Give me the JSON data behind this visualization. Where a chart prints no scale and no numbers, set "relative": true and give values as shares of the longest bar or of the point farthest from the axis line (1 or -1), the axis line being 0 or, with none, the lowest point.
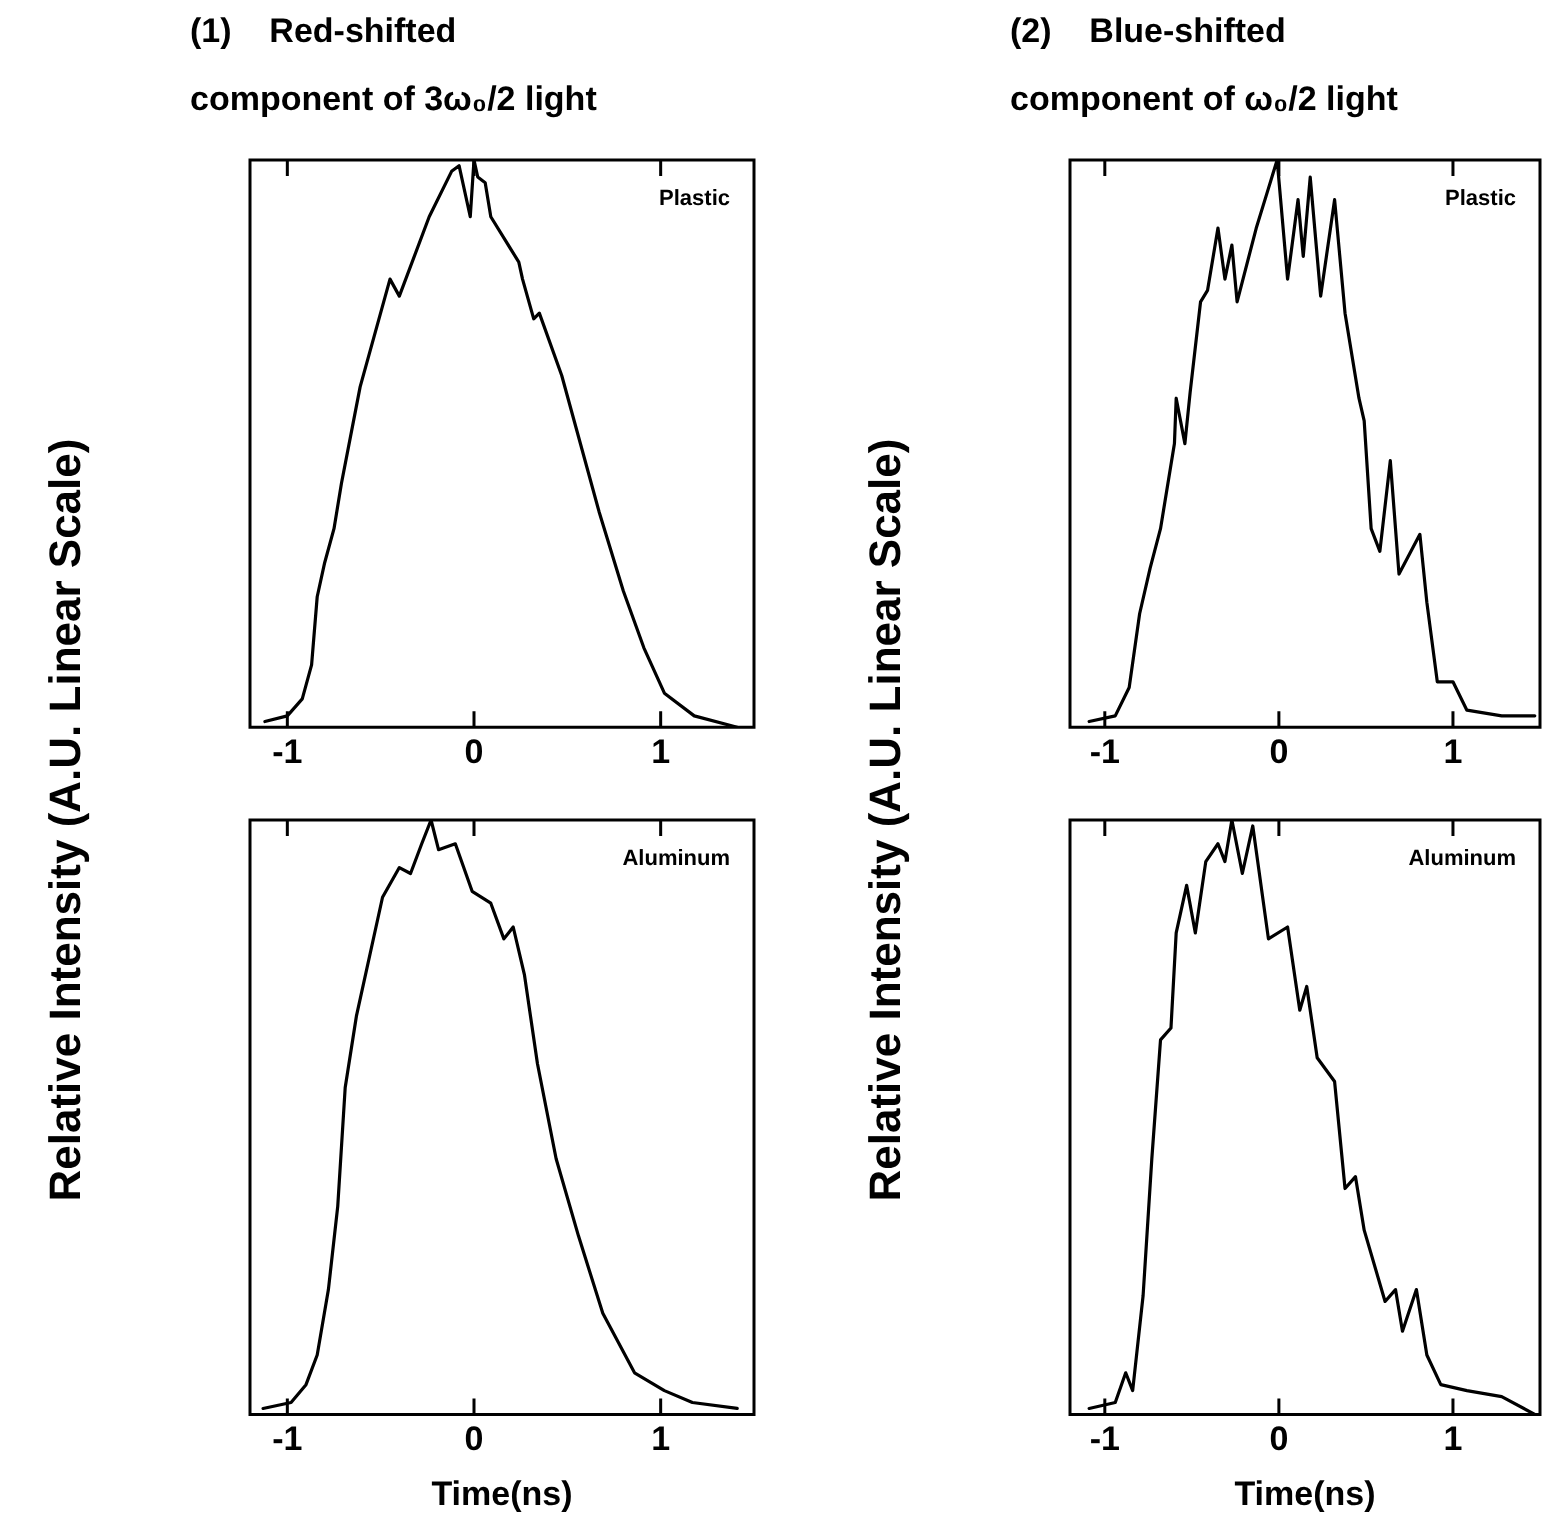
{
  "chart_data": [
    {
      "type": "line",
      "title": "(1)    Red-shifted",
      "subtitle": "component of 3ω₀/2 light",
      "ylabel": "Relative Intensity (A.U. Linear Scale)",
      "relative": true,
      "annotations": [
        "Plastic"
      ],
      "xlim": [
        -1.2,
        1.5
      ],
      "xticks": [
        -1,
        0,
        1
      ],
      "legend": false,
      "marker": "none",
      "line_style": "solid",
      "series": [
        {
          "color": "#000000",
          "x": [
            -1.12,
            -1.0,
            -0.92,
            -0.87,
            -0.84,
            -0.8,
            -0.75,
            -0.71,
            -0.61,
            -0.45,
            -0.4,
            -0.24,
            -0.12,
            -0.08,
            -0.02,
            0.0,
            0.02,
            0.06,
            0.09,
            0.24,
            0.26,
            0.32,
            0.35,
            0.47,
            0.67,
            0.8,
            0.91,
            1.02,
            1.18,
            1.41
          ],
          "values": [
            0.01,
            0.02,
            0.05,
            0.11,
            0.23,
            0.29,
            0.35,
            0.43,
            0.6,
            0.79,
            0.76,
            0.9,
            0.98,
            0.99,
            0.9,
            1.0,
            0.97,
            0.96,
            0.9,
            0.82,
            0.79,
            0.72,
            0.73,
            0.62,
            0.38,
            0.24,
            0.14,
            0.06,
            0.02,
            0.0
          ]
        }
      ]
    },
    {
      "type": "line",
      "title": "(2)    Blue-shifted",
      "subtitle": "component of ω₀/2 light",
      "ylabel": "Relative Intensity (A.U. Linear Scale)",
      "relative": true,
      "annotations": [
        "Plastic"
      ],
      "xlim": [
        -1.2,
        1.5
      ],
      "xticks": [
        -1,
        0,
        1
      ],
      "legend": false,
      "marker": "none",
      "line_style": "solid",
      "series": [
        {
          "color": "#000000",
          "x": [
            -1.09,
            -0.94,
            -0.86,
            -0.8,
            -0.74,
            -0.68,
            -0.6,
            -0.59,
            -0.54,
            -0.51,
            -0.45,
            -0.41,
            -0.35,
            -0.31,
            -0.27,
            -0.24,
            -0.13,
            -0.06,
            -0.01,
            0.05,
            0.11,
            0.14,
            0.18,
            0.24,
            0.32,
            0.38,
            0.46,
            0.49,
            0.53,
            0.58,
            0.64,
            0.69,
            0.81,
            0.85,
            0.91,
            1.0,
            1.08,
            1.28,
            1.47
          ],
          "values": [
            0.01,
            0.02,
            0.07,
            0.2,
            0.28,
            0.35,
            0.5,
            0.58,
            0.5,
            0.59,
            0.75,
            0.77,
            0.88,
            0.79,
            0.85,
            0.75,
            0.88,
            0.95,
            1.0,
            0.79,
            0.93,
            0.83,
            0.97,
            0.76,
            0.93,
            0.73,
            0.58,
            0.54,
            0.35,
            0.31,
            0.47,
            0.27,
            0.34,
            0.22,
            0.08,
            0.08,
            0.03,
            0.02,
            0.02
          ]
        }
      ]
    },
    {
      "type": "line",
      "xlabel": "Time(ns)",
      "relative": true,
      "annotations": [
        "Aluminum"
      ],
      "xlim": [
        -1.2,
        1.5
      ],
      "xticks": [
        -1,
        0,
        1
      ],
      "legend": false,
      "marker": "none",
      "line_style": "solid",
      "series": [
        {
          "color": "#000000",
          "x": [
            -1.13,
            -0.98,
            -0.9,
            -0.84,
            -0.78,
            -0.73,
            -0.69,
            -0.63,
            -0.49,
            -0.4,
            -0.34,
            -0.28,
            -0.23,
            -0.19,
            -0.1,
            -0.01,
            0.09,
            0.16,
            0.21,
            0.27,
            0.34,
            0.44,
            0.56,
            0.69,
            0.86,
            1.02,
            1.17,
            1.41
          ],
          "values": [
            0.01,
            0.02,
            0.05,
            0.1,
            0.21,
            0.35,
            0.55,
            0.67,
            0.87,
            0.92,
            0.91,
            0.96,
            1.0,
            0.95,
            0.96,
            0.88,
            0.86,
            0.8,
            0.82,
            0.74,
            0.59,
            0.43,
            0.3,
            0.17,
            0.07,
            0.04,
            0.02,
            0.01
          ]
        }
      ]
    },
    {
      "type": "line",
      "xlabel": "Time(ns)",
      "relative": true,
      "annotations": [
        "Aluminum"
      ],
      "xlim": [
        -1.2,
        1.5
      ],
      "xticks": [
        -1,
        0,
        1
      ],
      "legend": false,
      "marker": "none",
      "line_style": "solid",
      "series": [
        {
          "color": "#000000",
          "x": [
            -1.09,
            -0.94,
            -0.88,
            -0.84,
            -0.78,
            -0.73,
            -0.68,
            -0.62,
            -0.59,
            -0.53,
            -0.48,
            -0.42,
            -0.35,
            -0.31,
            -0.27,
            -0.21,
            -0.15,
            -0.06,
            0.05,
            0.12,
            0.16,
            0.22,
            0.32,
            0.38,
            0.44,
            0.49,
            0.61,
            0.67,
            0.71,
            0.79,
            0.85,
            0.93,
            1.08,
            1.28,
            1.47
          ],
          "values": [
            0.01,
            0.02,
            0.07,
            0.04,
            0.2,
            0.43,
            0.63,
            0.65,
            0.81,
            0.89,
            0.81,
            0.93,
            0.96,
            0.93,
            1.0,
            0.91,
            0.99,
            0.8,
            0.82,
            0.68,
            0.72,
            0.6,
            0.56,
            0.38,
            0.4,
            0.31,
            0.19,
            0.21,
            0.14,
            0.21,
            0.1,
            0.05,
            0.04,
            0.03,
            0.0
          ]
        }
      ]
    }
  ]
}
